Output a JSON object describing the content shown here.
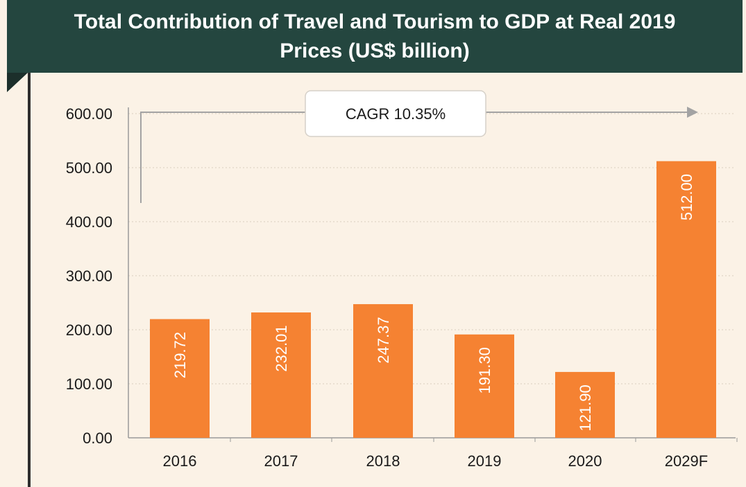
{
  "chart_data": {
    "type": "bar",
    "title_lines": [
      "Total Contribution of Travel and Tourism to GDP at Real 2019",
      "Prices (US$ billion)"
    ],
    "categories": [
      "2016",
      "2017",
      "2018",
      "2019",
      "2020",
      "2029F"
    ],
    "values": [
      219.72,
      232.01,
      247.37,
      191.3,
      121.9,
      512.0
    ],
    "value_labels": [
      "219.72",
      "232.01",
      "247.37",
      "191.30",
      "121.90",
      "512.00"
    ],
    "ylim": [
      0,
      600
    ],
    "y_ticks": [
      "0.00",
      "100.00",
      "200.00",
      "300.00",
      "400.00",
      "500.00",
      "600.00"
    ],
    "grid": true,
    "annotation": "CAGR 10.35%",
    "bar_color": "#f58232",
    "header_color": "#24463f",
    "background_color": "#fbf2e6"
  }
}
